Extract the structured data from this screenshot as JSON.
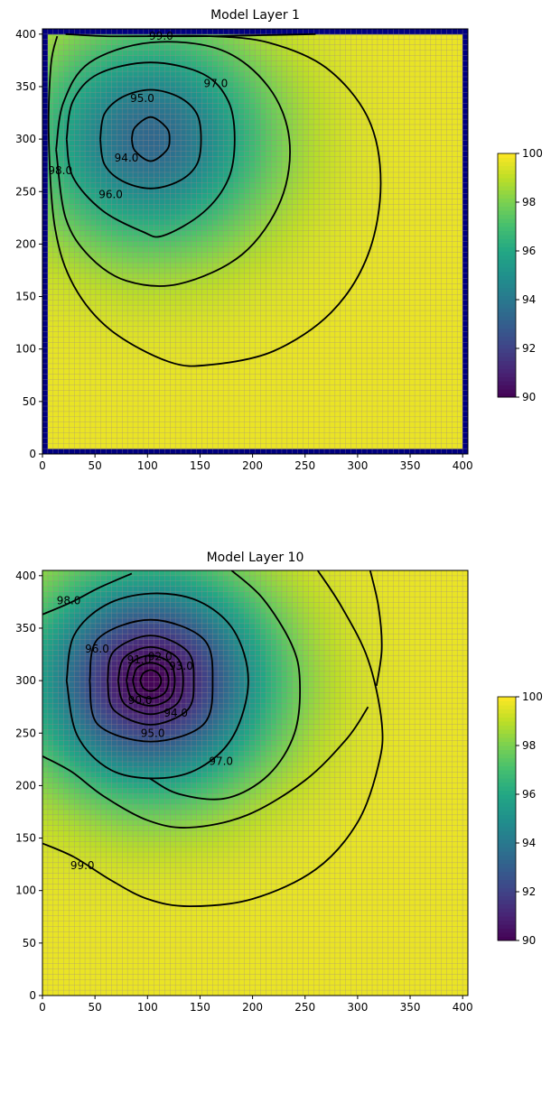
{
  "chart_data": [
    {
      "type": "heatmap",
      "title": "Model Layer 1",
      "xlim": [
        0,
        405
      ],
      "ylim": [
        0,
        405
      ],
      "x_ticks": [
        0,
        50,
        100,
        150,
        200,
        250,
        300,
        350,
        400
      ],
      "y_ticks": [
        0,
        50,
        100,
        150,
        200,
        250,
        300,
        350,
        400
      ],
      "grid": true,
      "boundary_cells": "navy constant-head border",
      "colormap": "viridis",
      "colorbar": {
        "min": 90,
        "max": 100,
        "ticks": [
          90,
          92,
          94,
          96,
          98,
          100
        ]
      },
      "head_field": {
        "background": 99.7,
        "center": [
          103,
          300
        ],
        "min_head": 93.4,
        "drop_scale": 6.3
      },
      "contours": [
        {
          "level": 94.0,
          "label": "94.0",
          "points": [
            [
              85,
              300
            ],
            [
              88,
              311
            ],
            [
              103,
              321
            ],
            [
              118,
              311
            ],
            [
              121,
              300
            ],
            [
              118,
              289
            ],
            [
              103,
              279
            ],
            [
              88,
              289
            ],
            [
              85,
              300
            ]
          ],
          "label_at": [
            80,
            282
          ]
        },
        {
          "level": 95.0,
          "label": "95.0",
          "points": [
            [
              55,
              300
            ],
            [
              59,
              324
            ],
            [
              76,
              340
            ],
            [
              103,
              347
            ],
            [
              130,
              340
            ],
            [
              147,
              324
            ],
            [
              151,
              300
            ],
            [
              147,
              276
            ],
            [
              130,
              260
            ],
            [
              103,
              253
            ],
            [
              76,
              260
            ],
            [
              59,
              276
            ],
            [
              55,
              300
            ]
          ],
          "label_at": [
            95,
            339
          ]
        },
        {
          "level": 96.0,
          "label": "96.0",
          "points": [
            [
              23,
              300
            ],
            [
              29,
              336
            ],
            [
              53,
              362
            ],
            [
              103,
              373
            ],
            [
              153,
              362
            ],
            [
              177,
              336
            ],
            [
              183,
              300
            ],
            [
              177,
              262
            ],
            [
              153,
              230
            ],
            [
              115,
              208
            ],
            [
              95,
              212
            ],
            [
              57,
              232
            ],
            [
              29,
              264
            ],
            [
              23,
              300
            ]
          ],
          "label_at": [
            65,
            247
          ]
        },
        {
          "level": 97.0,
          "label": "97.0",
          "points": [
            [
              13,
              290
            ],
            [
              20,
              335
            ],
            [
              45,
              373
            ],
            [
              103,
              392
            ],
            [
              170,
              385
            ],
            [
              215,
              350
            ],
            [
              235,
              300
            ],
            [
              227,
              242
            ],
            [
              190,
              190
            ],
            [
              130,
              162
            ],
            [
              80,
              165
            ],
            [
              45,
              188
            ],
            [
              22,
              225
            ],
            [
              13,
              290
            ]
          ],
          "label_at": [
            165,
            353
          ]
        },
        {
          "level": 98.0,
          "label": "98.0",
          "points": [
            [
              14,
              398
            ],
            [
              8,
              370
            ],
            [
              6,
              300
            ],
            [
              12,
              215
            ],
            [
              30,
              160
            ],
            [
              65,
              118
            ],
            [
              120,
              88
            ],
            [
              160,
              85
            ],
            [
              220,
              98
            ],
            [
              275,
              135
            ],
            [
              310,
              190
            ],
            [
              322,
              258
            ],
            [
              310,
              320
            ],
            [
              270,
              368
            ],
            [
              215,
              392
            ],
            [
              160,
              398
            ],
            [
              100,
              398
            ]
          ],
          "label_at": [
            17,
            270
          ]
        },
        {
          "level": 99.0,
          "label": "99.0",
          "points": [
            [
              260,
              400
            ],
            [
              210,
              399
            ],
            [
              160,
              398
            ],
            [
              105,
              398
            ],
            [
              60,
              398
            ],
            [
              22,
              400
            ]
          ],
          "label_at": [
            113,
            398
          ]
        }
      ]
    },
    {
      "type": "heatmap",
      "title": "Model Layer 10",
      "xlim": [
        0,
        405
      ],
      "ylim": [
        0,
        405
      ],
      "x_ticks": [
        0,
        50,
        100,
        150,
        200,
        250,
        300,
        350,
        400
      ],
      "y_ticks": [
        0,
        50,
        100,
        150,
        200,
        250,
        300,
        350,
        400
      ],
      "grid": true,
      "colormap": "viridis",
      "colorbar": {
        "min": 90,
        "max": 100,
        "ticks": [
          90,
          92,
          94,
          96,
          98,
          100
        ]
      },
      "head_field": {
        "background": 99.7,
        "center": [
          103,
          300
        ],
        "min_head": 89.9,
        "drop_scale": 9.6
      },
      "contours": [
        {
          "level": 90.0,
          "label": "90.0",
          "points": [
            [
              93,
              300
            ],
            [
              96,
              307
            ],
            [
              103,
              310
            ],
            [
              110,
              307
            ],
            [
              113,
              300
            ],
            [
              110,
              293
            ],
            [
              103,
              290
            ],
            [
              96,
              293
            ],
            [
              93,
              300
            ]
          ],
          "label_at": [
            93,
            281
          ]
        },
        {
          "level": 91.0,
          "label": "91.0",
          "points": [
            [
              86,
              300
            ],
            [
              90,
              312
            ],
            [
              103,
              317
            ],
            [
              116,
              312
            ],
            [
              120,
              300
            ],
            [
              116,
              288
            ],
            [
              103,
              283
            ],
            [
              90,
              288
            ],
            [
              86,
              300
            ]
          ],
          "label_at": [
            92,
            320
          ]
        },
        {
          "level": 92.0,
          "label": "92.0",
          "points": [
            [
              80,
              300
            ],
            [
              85,
              317
            ],
            [
              103,
              324
            ],
            [
              121,
              317
            ],
            [
              126,
              300
            ],
            [
              121,
              283
            ],
            [
              103,
              276
            ],
            [
              85,
              283
            ],
            [
              80,
              300
            ]
          ],
          "label_at": [
            112,
            323
          ]
        },
        {
          "level": 93.0,
          "label": "93.0",
          "points": [
            [
              72,
              300
            ],
            [
              78,
              322
            ],
            [
              103,
              332
            ],
            [
              128,
              322
            ],
            [
              134,
              300
            ],
            [
              128,
              278
            ],
            [
              103,
              268
            ],
            [
              78,
              278
            ],
            [
              72,
              300
            ]
          ],
          "label_at": [
            132,
            314
          ]
        },
        {
          "level": 94.0,
          "label": "94.0",
          "points": [
            [
              62,
              300
            ],
            [
              68,
              328
            ],
            [
              103,
              343
            ],
            [
              138,
              328
            ],
            [
              144,
              300
            ],
            [
              138,
              272
            ],
            [
              103,
              258
            ],
            [
              68,
              272
            ],
            [
              62,
              300
            ]
          ],
          "label_at": [
            127,
            269
          ]
        },
        {
          "level": 95.0,
          "label": "95.0",
          "points": [
            [
              45,
              300
            ],
            [
              53,
              340
            ],
            [
              103,
              358
            ],
            [
              153,
              340
            ],
            [
              162,
              300
            ],
            [
              153,
              258
            ],
            [
              103,
              242
            ],
            [
              53,
              258
            ],
            [
              45,
              300
            ]
          ],
          "label_at": [
            105,
            250
          ]
        },
        {
          "level": 96.0,
          "label": "96.0",
          "points": [
            [
              23,
              300
            ],
            [
              30,
              343
            ],
            [
              60,
              372
            ],
            [
              103,
              383
            ],
            [
              148,
              376
            ],
            [
              182,
              348
            ],
            [
              196,
              300
            ],
            [
              182,
              248
            ],
            [
              150,
              217
            ],
            [
              110,
              207
            ],
            [
              65,
              215
            ],
            [
              33,
              248
            ],
            [
              23,
              300
            ]
          ],
          "label_at": [
            52,
            330
          ]
        },
        {
          "level": 97.0,
          "label": "97.0",
          "points": [
            [
              180,
              405
            ],
            [
              210,
              378
            ],
            [
              237,
              335
            ],
            [
              245,
              300
            ],
            [
              240,
              250
            ],
            [
              215,
              210
            ],
            [
              175,
              188
            ],
            [
              130,
              192
            ],
            [
              102,
              207
            ]
          ],
          "label_at": [
            170,
            223
          ]
        },
        {
          "level": 97.0,
          "label": "",
          "points": [
            [
              0,
              228
            ],
            [
              28,
              213
            ],
            [
              58,
              190
            ],
            [
              100,
              167
            ],
            [
              140,
              160
            ],
            [
              195,
              172
            ],
            [
              250,
              205
            ],
            [
              290,
              245
            ],
            [
              310,
              275
            ]
          ],
          "label_at": null
        },
        {
          "level": 98.0,
          "label": "98.0",
          "points": [
            [
              0,
              363
            ],
            [
              28,
              375
            ],
            [
              55,
              389
            ],
            [
              85,
              402
            ]
          ],
          "label_at": [
            25,
            376
          ]
        },
        {
          "level": 98.0,
          "label": "",
          "points": [
            [
              0,
              145
            ],
            [
              30,
              132
            ],
            [
              65,
              110
            ],
            [
              100,
              92
            ],
            [
              140,
              85
            ],
            [
              200,
              92
            ],
            [
              260,
              120
            ],
            [
              300,
              165
            ],
            [
              320,
              220
            ],
            [
              323,
              260
            ],
            [
              310,
              320
            ],
            [
              285,
              370
            ],
            [
              262,
              405
            ]
          ],
          "label_at": null
        },
        {
          "level": 99.0,
          "label": "99.0",
          "points": [
            [
              312,
              405
            ],
            [
              320,
              370
            ],
            [
              323,
              330
            ],
            [
              318,
              295
            ]
          ],
          "label_at": [
            38,
            124
          ]
        }
      ]
    }
  ]
}
